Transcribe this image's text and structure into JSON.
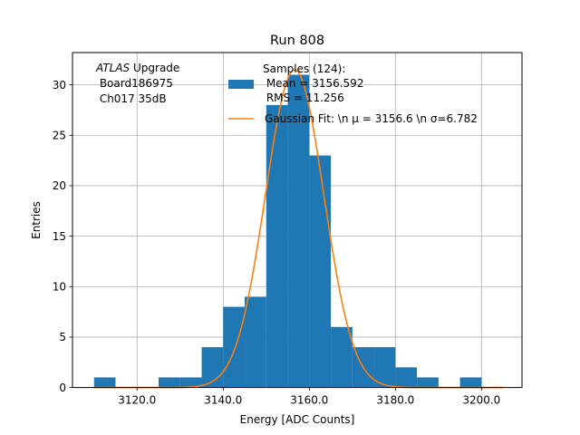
{
  "chart_data": {
    "type": "bar",
    "title": "Run 808",
    "xlabel": "Energy [ADC Counts]",
    "ylabel": "Entries",
    "xlim": [
      3105.0,
      3209.4
    ],
    "ylim": [
      0,
      33.2
    ],
    "grid": true,
    "x_ticks": [
      3120,
      3140,
      3160,
      3180,
      3200
    ],
    "x_tick_labels": [
      "3120.0",
      "3140.0",
      "3160.0",
      "3180.0",
      "3200.0"
    ],
    "y_ticks": [
      0,
      5,
      10,
      15,
      20,
      25,
      30
    ],
    "y_tick_labels": [
      "0",
      "5",
      "10",
      "15",
      "20",
      "25",
      "30"
    ],
    "annotation": {
      "lines": [
        "ATLAS Upgrade",
        " Board186975",
        " Ch017 35dB"
      ],
      "italic_word": "ATLAS",
      "rest_of_first_line": " Upgrade"
    },
    "legend": {
      "placement": "top-center",
      "entries": [
        {
          "label": "Samples (124):\n Mean = 3156.592\n RMS = 11.256",
          "kind": "patch",
          "color": "#1f77b4"
        },
        {
          "label": "Gaussian Fit: \\n μ = 3156.6 \\n σ=6.782",
          "kind": "line",
          "color": "#ff7f0e"
        }
      ]
    },
    "histogram": {
      "name": "Samples (124)",
      "color": "#1f77b4",
      "bin_edges": [
        3110,
        3115,
        3120,
        3125,
        3130,
        3135,
        3140,
        3145,
        3150,
        3155,
        3160,
        3165,
        3170,
        3175,
        3180,
        3185,
        3190,
        3195,
        3200
      ],
      "counts": [
        1,
        0,
        0,
        1,
        1,
        4,
        8,
        9,
        28,
        31,
        23,
        6,
        4,
        4,
        2,
        1,
        0,
        1
      ]
    },
    "gaussian_fit": {
      "name": "Gaussian Fit",
      "color": "#ff7f0e",
      "mean": 3156.6,
      "sigma": 6.782,
      "amplitude": 31.5,
      "x_range": [
        3110,
        3205
      ]
    }
  }
}
